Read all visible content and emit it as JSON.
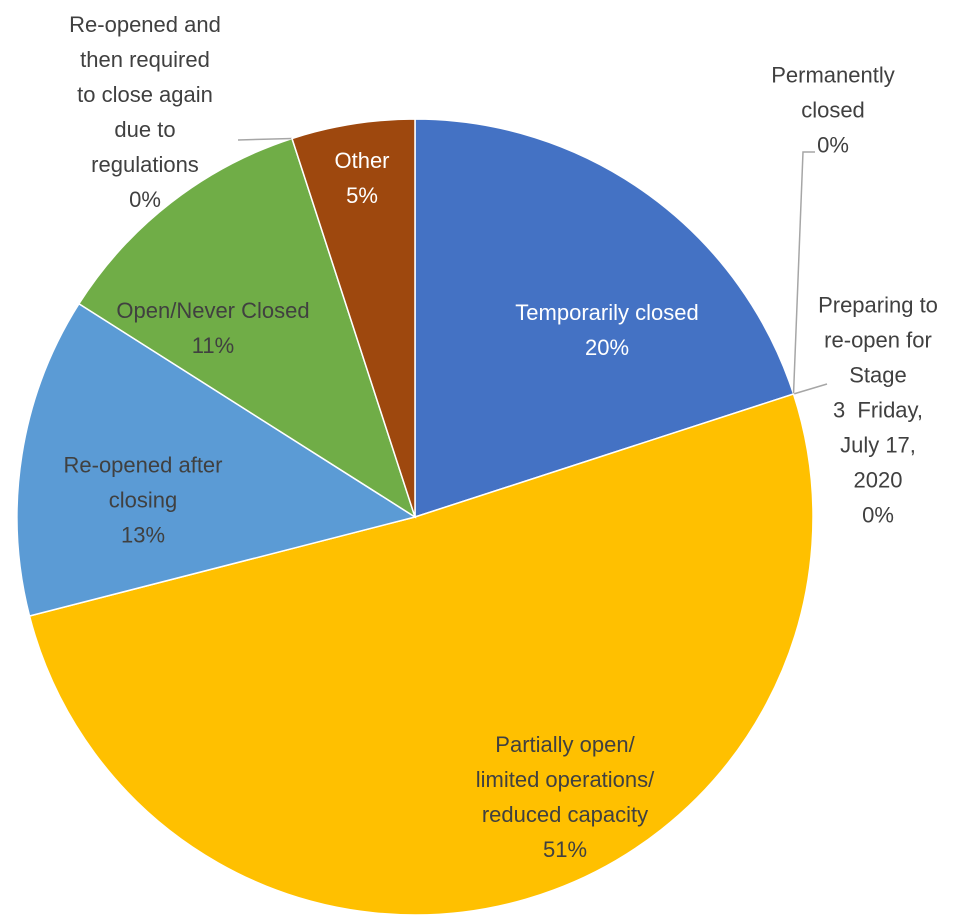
{
  "chart_data": {
    "type": "pie",
    "categories": [
      "Temporarily closed",
      "Permanently\nclosed",
      "Preparing to\nre-open for\nStage\n3  Friday,\nJuly 17,\n2020",
      "Partially open/\nlimited operations/\nreduced capacity",
      "Re-opened after\nclosing",
      "Open/Never Closed",
      "Re-opened and\nthen required\nto close again\ndue to\nregulations",
      "Other"
    ],
    "values": [
      20,
      0,
      0,
      51,
      13,
      11,
      0,
      5
    ],
    "value_labels": [
      "20%",
      "0%",
      "0%",
      "51%",
      "13%",
      "11%",
      "0%",
      "5%"
    ],
    "colors": [
      "#4472c4",
      "#ed7d31",
      "#a5a5a5",
      "#ffc000",
      "#5b9bd5",
      "#70ad47",
      "#264478",
      "#9e480e"
    ]
  }
}
